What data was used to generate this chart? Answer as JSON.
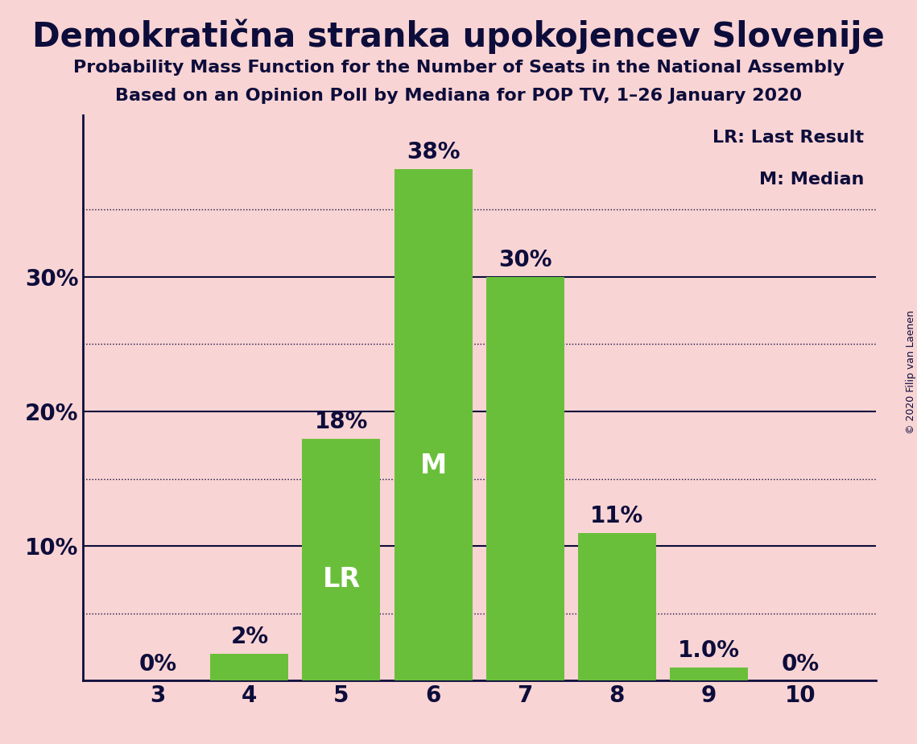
{
  "title": "Demokratična stranka upokojencev Slovenije",
  "subtitle1": "Probability Mass Function for the Number of Seats in the National Assembly",
  "subtitle2": "Based on an Opinion Poll by Mediana for POP TV, 1–26 January 2020",
  "copyright": "© 2020 Filip van Laenen",
  "categories": [
    3,
    4,
    5,
    6,
    7,
    8,
    9,
    10
  ],
  "values": [
    0,
    2,
    18,
    38,
    30,
    11,
    1.0,
    0
  ],
  "value_labels": [
    "0%",
    "2%",
    "18%",
    "38%",
    "30%",
    "11%",
    "1.0%",
    "0%"
  ],
  "bar_color": "#6abf3a",
  "background_color": "#f9d4d4",
  "text_color": "#0d0d3b",
  "lr_bar": 5,
  "median_bar": 6,
  "legend_lr": "LR: Last Result",
  "legend_m": "M: Median",
  "ylim": [
    0,
    42
  ],
  "yticks": [
    0,
    10,
    20,
    30
  ],
  "ytick_labels": [
    "",
    "10%",
    "20%",
    "30%"
  ],
  "solid_lines": [
    10,
    20,
    30
  ],
  "dotted_lines": [
    5,
    15,
    25,
    35
  ],
  "title_fontsize": 30,
  "subtitle_fontsize": 16,
  "bar_label_fontsize": 20,
  "inside_label_fontsize": 24,
  "axis_fontsize": 20,
  "legend_fontsize": 16,
  "copyright_fontsize": 9
}
